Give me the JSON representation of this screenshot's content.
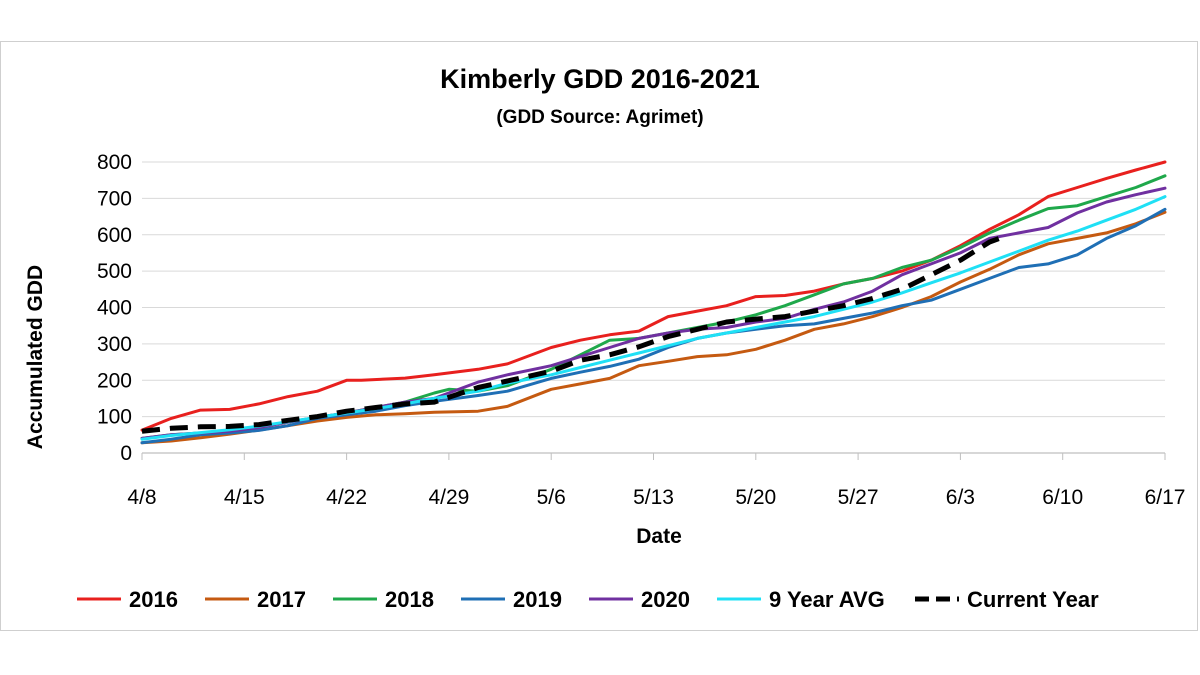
{
  "chart_data": {
    "type": "line",
    "title": "Kimberly GDD 2016-2021",
    "subtitle": "(GDD Source: Agrimet)",
    "xlabel": "Date",
    "ylabel": "Accumulated GDD",
    "ylim": [
      0,
      800
    ],
    "yticks": [
      "0",
      "100",
      "200",
      "300",
      "400",
      "500",
      "600",
      "700",
      "800"
    ],
    "xlim": [
      "4/8",
      "6/17"
    ],
    "xticks": [
      "4/8",
      "4/15",
      "4/22",
      "4/29",
      "5/6",
      "5/13",
      "5/20",
      "5/27",
      "6/3",
      "6/10",
      "6/17"
    ],
    "grid": "horizontal",
    "legend": "bottom",
    "series": [
      {
        "name": "2016",
        "color": "#e8201e",
        "dashed": false,
        "x": [
          "4/8",
          "4/10",
          "4/12",
          "4/14",
          "4/16",
          "4/18",
          "4/20",
          "4/22",
          "4/23",
          "4/26",
          "4/28",
          "5/1",
          "5/3",
          "5/6",
          "5/8",
          "5/10",
          "5/12",
          "5/14",
          "5/16",
          "5/18",
          "5/20",
          "5/22",
          "5/24",
          "5/26",
          "5/28",
          "5/30",
          "6/1",
          "6/3",
          "6/5",
          "6/7",
          "6/9",
          "6/11",
          "6/13",
          "6/15",
          "6/17"
        ],
        "y": [
          63,
          95,
          118,
          120,
          135,
          155,
          170,
          200,
          200,
          206,
          215,
          230,
          245,
          290,
          310,
          325,
          335,
          375,
          390,
          405,
          430,
          433,
          445,
          465,
          480,
          500,
          530,
          570,
          615,
          655,
          705,
          730,
          755,
          778,
          800
        ]
      },
      {
        "name": "2017",
        "color": "#c55a11",
        "dashed": false,
        "x": [
          "4/8",
          "4/10",
          "4/12",
          "4/14",
          "4/16",
          "4/18",
          "4/20",
          "4/22",
          "4/24",
          "4/26",
          "4/28",
          "5/1",
          "5/3",
          "5/6",
          "5/8",
          "5/10",
          "5/12",
          "5/14",
          "5/16",
          "5/18",
          "5/20",
          "5/22",
          "5/24",
          "5/26",
          "5/28",
          "5/30",
          "6/1",
          "6/3",
          "6/5",
          "6/7",
          "6/9",
          "6/11",
          "6/13",
          "6/15",
          "6/17"
        ],
        "y": [
          28,
          33,
          42,
          52,
          63,
          75,
          88,
          98,
          105,
          108,
          112,
          115,
          128,
          175,
          190,
          205,
          240,
          252,
          265,
          270,
          285,
          310,
          340,
          355,
          375,
          400,
          430,
          470,
          505,
          545,
          575,
          590,
          605,
          630,
          662
        ]
      },
      {
        "name": "2018",
        "color": "#1fa84b",
        "dashed": false,
        "x": [
          "4/8",
          "4/10",
          "4/12",
          "4/14",
          "4/16",
          "4/18",
          "4/20",
          "4/22",
          "4/24",
          "4/26",
          "4/28",
          "4/29",
          "5/1",
          "5/3",
          "5/6",
          "5/8",
          "5/10",
          "5/12",
          "5/14",
          "5/16",
          "5/18",
          "5/20",
          "5/22",
          "5/24",
          "5/26",
          "5/28",
          "5/30",
          "6/1",
          "6/3",
          "6/5",
          "6/7",
          "6/9",
          "6/11",
          "6/13",
          "6/15",
          "6/17"
        ],
        "y": [
          40,
          50,
          55,
          60,
          72,
          85,
          98,
          110,
          125,
          140,
          165,
          175,
          170,
          185,
          230,
          270,
          310,
          315,
          330,
          345,
          360,
          380,
          405,
          435,
          465,
          480,
          510,
          530,
          565,
          605,
          640,
          672,
          680,
          705,
          730,
          762
        ]
      },
      {
        "name": "2019",
        "color": "#1f6fb5",
        "dashed": false,
        "x": [
          "4/8",
          "4/10",
          "4/12",
          "4/14",
          "4/16",
          "4/18",
          "4/20",
          "4/22",
          "4/24",
          "4/26",
          "4/28",
          "5/1",
          "5/3",
          "5/6",
          "5/8",
          "5/10",
          "5/12",
          "5/14",
          "5/16",
          "5/18",
          "5/20",
          "5/22",
          "5/24",
          "5/26",
          "5/28",
          "5/30",
          "6/1",
          "6/3",
          "6/5",
          "6/7",
          "6/9",
          "6/11",
          "6/13",
          "6/15",
          "6/17"
        ],
        "y": [
          28,
          38,
          50,
          55,
          62,
          75,
          95,
          105,
          115,
          130,
          142,
          158,
          170,
          205,
          222,
          238,
          258,
          290,
          315,
          330,
          340,
          350,
          355,
          370,
          385,
          405,
          420,
          450,
          480,
          510,
          520,
          545,
          590,
          625,
          670
        ]
      },
      {
        "name": "2020",
        "color": "#7030a0",
        "dashed": false,
        "x": [
          "4/8",
          "4/10",
          "4/12",
          "4/14",
          "4/16",
          "4/18",
          "4/20",
          "4/22",
          "4/24",
          "4/26",
          "4/28",
          "5/1",
          "5/3",
          "5/6",
          "5/8",
          "5/10",
          "5/12",
          "5/14",
          "5/16",
          "5/18",
          "5/20",
          "5/22",
          "5/24",
          "5/26",
          "5/28",
          "5/30",
          "6/1",
          "6/3",
          "6/5",
          "6/7",
          "6/9",
          "6/11",
          "6/13",
          "6/15",
          "6/17"
        ],
        "y": [
          40,
          50,
          55,
          60,
          70,
          85,
          98,
          110,
          125,
          140,
          150,
          195,
          215,
          240,
          265,
          290,
          315,
          330,
          340,
          345,
          360,
          370,
          395,
          415,
          445,
          490,
          520,
          550,
          590,
          605,
          620,
          660,
          690,
          710,
          728
        ]
      },
      {
        "name": "9 Year AVG",
        "color": "#1fe0f5",
        "dashed": false,
        "x": [
          "4/8",
          "4/10",
          "4/12",
          "4/14",
          "4/16",
          "4/18",
          "4/20",
          "4/22",
          "4/24",
          "4/26",
          "4/28",
          "5/1",
          "5/3",
          "5/6",
          "5/8",
          "5/10",
          "5/12",
          "5/14",
          "5/16",
          "5/18",
          "5/20",
          "5/22",
          "5/24",
          "5/26",
          "5/28",
          "5/30",
          "6/1",
          "6/3",
          "6/5",
          "6/7",
          "6/9",
          "6/11",
          "6/13",
          "6/15",
          "6/17"
        ],
        "y": [
          38,
          48,
          56,
          64,
          74,
          86,
          98,
          110,
          122,
          135,
          150,
          170,
          192,
          215,
          235,
          255,
          275,
          295,
          315,
          330,
          345,
          360,
          375,
          395,
          415,
          440,
          468,
          495,
          525,
          555,
          585,
          610,
          640,
          670,
          705
        ]
      },
      {
        "name": "Current Year",
        "color": "#000000",
        "dashed": true,
        "x": [
          "4/8",
          "4/10",
          "4/12",
          "4/14",
          "4/16",
          "4/18",
          "4/20",
          "4/22",
          "4/24",
          "4/26",
          "4/28",
          "5/1",
          "5/3",
          "5/6",
          "5/8",
          "5/10",
          "5/12",
          "5/14",
          "5/16",
          "5/18",
          "5/20",
          "5/22",
          "5/24",
          "5/26",
          "5/28",
          "5/30",
          "6/1",
          "6/3",
          "6/5",
          "6/6"
        ],
        "y": [
          60,
          68,
          72,
          73,
          78,
          90,
          100,
          115,
          125,
          135,
          140,
          180,
          198,
          225,
          255,
          270,
          292,
          320,
          340,
          360,
          368,
          375,
          390,
          405,
          425,
          450,
          490,
          530,
          580,
          595
        ]
      }
    ]
  }
}
